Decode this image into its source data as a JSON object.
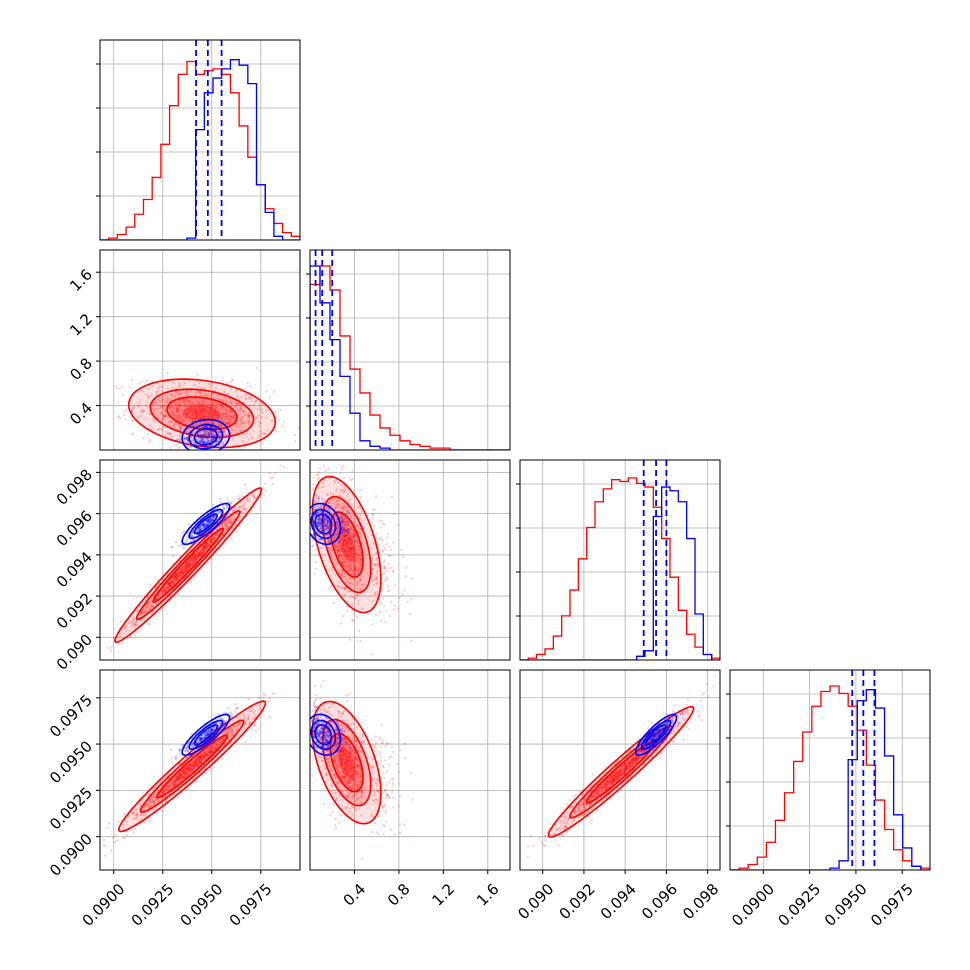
{
  "colors": {
    "series_a": "#ff0000",
    "series_b": "#0000ff",
    "grid": "#b0b0b0",
    "frame": "#000000"
  },
  "chart_data": {
    "type": "corner",
    "grid": true,
    "params": [
      {
        "index": 0,
        "range": [
          0.0893,
          0.0995
        ],
        "ticks": [
          0.09,
          0.0925,
          0.095,
          0.0975
        ],
        "tick_labels": [
          "0.0900",
          "0.0925",
          "0.0950",
          "0.0975"
        ]
      },
      {
        "index": 1,
        "range": [
          0.0,
          1.8
        ],
        "ticks": [
          0.4,
          0.8,
          1.2,
          1.6
        ],
        "tick_labels": [
          "0.4",
          "0.8",
          "1.2",
          "1.6"
        ]
      },
      {
        "index": 2,
        "range": [
          0.0889,
          0.0986
        ],
        "ticks": [
          0.09,
          0.092,
          0.094,
          0.096,
          0.098
        ],
        "tick_labels": [
          "0.090",
          "0.092",
          "0.094",
          "0.096",
          "0.098"
        ]
      },
      {
        "index": 3,
        "range": [
          0.0882,
          0.099
        ],
        "ticks": [
          0.09,
          0.0925,
          0.095,
          0.0975
        ],
        "tick_labels": [
          "0.0900",
          "0.0925",
          "0.0950",
          "0.0975"
        ]
      }
    ],
    "series": [
      {
        "color": "#ff0000",
        "hist": [
          [
            0.0,
            0.01,
            0.03,
            0.07,
            0.14,
            0.22,
            0.34,
            0.52,
            0.73,
            0.9,
            0.97,
            0.9,
            0.92,
            0.93,
            0.9,
            0.8,
            0.62,
            0.45,
            0.3,
            0.17,
            0.09,
            0.04,
            0.02
          ],
          [
            0.9,
            1.0,
            0.87,
            0.62,
            0.44,
            0.31,
            0.19,
            0.12,
            0.08,
            0.05,
            0.03,
            0.02,
            0.01,
            0.01,
            0.0,
            0.0,
            0.0,
            0.0,
            0.0,
            0.0
          ],
          [
            0.0,
            0.01,
            0.03,
            0.06,
            0.13,
            0.24,
            0.38,
            0.55,
            0.72,
            0.86,
            0.93,
            0.98,
            0.97,
            0.99,
            0.96,
            0.94,
            0.83,
            0.66,
            0.45,
            0.27,
            0.14,
            0.07,
            0.03,
            0.01
          ],
          [
            0.0,
            0.01,
            0.03,
            0.07,
            0.15,
            0.27,
            0.42,
            0.59,
            0.75,
            0.89,
            0.97,
            1.0,
            0.96,
            0.89,
            0.76,
            0.57,
            0.38,
            0.22,
            0.11,
            0.05,
            0.02,
            0.01
          ]
        ],
        "pairs": [
          {
            "x": 0,
            "y": 1,
            "mean": [
              0.0945,
              0.33
            ],
            "sd": [
              0.0017,
              0.14
            ],
            "rho": -0.25
          },
          {
            "x": 0,
            "y": 2,
            "mean": [
              0.0938,
              0.0935
            ],
            "sd": [
              0.0017,
              0.0017
            ],
            "rho": 0.98
          },
          {
            "x": 1,
            "y": 2,
            "mean": [
              0.33,
              0.0945
            ],
            "sd": [
              0.14,
              0.0015
            ],
            "rho": -0.5
          },
          {
            "x": 0,
            "y": 3,
            "mean": [
              0.094,
              0.0938
            ],
            "sd": [
              0.0017,
              0.0016
            ],
            "rho": 0.97
          },
          {
            "x": 1,
            "y": 3,
            "mean": [
              0.33,
              0.094
            ],
            "sd": [
              0.14,
              0.0015
            ],
            "rho": -0.5
          },
          {
            "x": 2,
            "y": 3,
            "mean": [
              0.0938,
              0.0935
            ],
            "sd": [
              0.0016,
              0.0016
            ],
            "rho": 0.97
          }
        ]
      },
      {
        "color": "#0000ff",
        "quantiles": [
          [
            0.0942,
            0.0948,
            0.0955
          ],
          [
            0.05,
            0.11,
            0.2
          ],
          [
            0.0949,
            0.0955,
            0.096
          ],
          [
            0.0948,
            0.0954,
            0.096
          ]
        ],
        "hist": [
          [
            0.0,
            0.0,
            0.0,
            0.0,
            0.0,
            0.0,
            0.0,
            0.0,
            0.0,
            0.0,
            0.01,
            0.6,
            0.8,
            0.88,
            0.93,
            0.98,
            0.95,
            0.85,
            0.3,
            0.15,
            0.02,
            0.0,
            0.0
          ],
          [
            1.0,
            0.8,
            0.6,
            0.4,
            0.2,
            0.05,
            0.02,
            0.01,
            0.0,
            0.0,
            0.0,
            0.0,
            0.0,
            0.0,
            0.0,
            0.0,
            0.0,
            0.0,
            0.0,
            0.0
          ],
          [
            0.0,
            0.0,
            0.0,
            0.0,
            0.0,
            0.0,
            0.0,
            0.0,
            0.0,
            0.0,
            0.0,
            0.0,
            0.0,
            0.0,
            0.02,
            0.05,
            0.78,
            0.94,
            0.92,
            0.86,
            0.66,
            0.25,
            0.03,
            0.0
          ],
          [
            0.0,
            0.0,
            0.0,
            0.0,
            0.0,
            0.0,
            0.0,
            0.0,
            0.0,
            0.0,
            0.0,
            0.01,
            0.05,
            0.6,
            0.92,
            0.98,
            0.88,
            0.62,
            0.3,
            0.12,
            0.02,
            0.0
          ]
        ],
        "pairs": [
          {
            "x": 0,
            "y": 1,
            "mean": [
              0.0947,
              0.12
            ],
            "sd": [
              0.00055,
              0.07
            ],
            "rho": 0.1
          },
          {
            "x": 0,
            "y": 2,
            "mean": [
              0.0947,
              0.0955
            ],
            "sd": [
              0.00055,
              0.00045
            ],
            "rho": 0.85
          },
          {
            "x": 1,
            "y": 2,
            "mean": [
              0.12,
              0.0955
            ],
            "sd": [
              0.07,
              0.00045
            ],
            "rho": -0.2
          },
          {
            "x": 0,
            "y": 3,
            "mean": [
              0.0947,
              0.0955
            ],
            "sd": [
              0.00055,
              0.0005
            ],
            "rho": 0.85
          },
          {
            "x": 1,
            "y": 3,
            "mean": [
              0.12,
              0.0955
            ],
            "sd": [
              0.07,
              0.0005
            ],
            "rho": -0.2
          },
          {
            "x": 2,
            "y": 3,
            "mean": [
              0.0955,
              0.0955
            ],
            "sd": [
              0.00045,
              0.0005
            ],
            "rho": 0.85
          }
        ]
      }
    ]
  }
}
